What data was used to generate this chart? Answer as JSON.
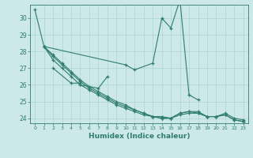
{
  "xlabel": "Humidex (Indice chaleur)",
  "xlim": [
    -0.5,
    23.5
  ],
  "ylim": [
    23.7,
    30.8
  ],
  "bg_color": "#cce8e8",
  "line_color": "#2e7d6e",
  "grid_color": "#b0d8d8",
  "yticks": [
    24,
    25,
    26,
    27,
    28,
    29,
    30
  ],
  "series": [
    {
      "x": [
        0,
        1,
        10,
        11,
        13,
        14,
        15,
        16,
        17,
        18
      ],
      "y": [
        30.5,
        28.3,
        27.2,
        26.9,
        27.3,
        30.0,
        29.4,
        31.1,
        25.4,
        25.1
      ]
    },
    {
      "x": [
        2,
        4,
        5
      ],
      "y": [
        27.0,
        26.1,
        26.1
      ]
    },
    {
      "x": [
        5,
        7,
        8
      ],
      "y": [
        26.0,
        25.8,
        26.5
      ]
    },
    {
      "x": [
        1,
        2,
        3,
        4,
        5,
        6,
        7,
        8,
        9,
        10,
        11,
        12,
        13,
        14,
        15,
        16,
        17,
        18,
        19,
        20,
        21,
        22,
        23
      ],
      "y": [
        28.3,
        27.5,
        27.0,
        26.5,
        26.0,
        25.7,
        25.4,
        25.1,
        24.8,
        24.6,
        24.4,
        24.2,
        24.1,
        24.0,
        24.0,
        24.2,
        24.3,
        24.3,
        24.1,
        24.1,
        24.2,
        23.9,
        23.8
      ]
    },
    {
      "x": [
        1,
        2,
        3,
        4,
        5,
        6,
        7,
        8,
        9,
        10,
        11,
        12,
        13,
        14,
        15,
        16,
        17,
        18,
        19,
        20,
        21,
        22,
        23
      ],
      "y": [
        28.3,
        27.8,
        27.3,
        26.8,
        26.3,
        25.9,
        25.6,
        25.3,
        25.0,
        24.8,
        24.5,
        24.3,
        24.1,
        24.1,
        24.0,
        24.3,
        24.4,
        24.4,
        24.1,
        24.1,
        24.3,
        24.0,
        23.9
      ]
    },
    {
      "x": [
        1,
        2,
        3,
        4,
        5,
        6,
        7,
        8,
        9,
        10,
        11,
        12,
        13,
        14,
        15,
        16,
        17,
        18,
        19,
        20,
        21,
        22,
        23
      ],
      "y": [
        28.3,
        27.7,
        27.2,
        26.7,
        26.2,
        25.8,
        25.5,
        25.2,
        24.9,
        24.7,
        24.5,
        24.3,
        24.1,
        24.0,
        24.0,
        24.3,
        24.4,
        24.3,
        24.1,
        24.1,
        24.2,
        23.9,
        23.8
      ]
    }
  ]
}
